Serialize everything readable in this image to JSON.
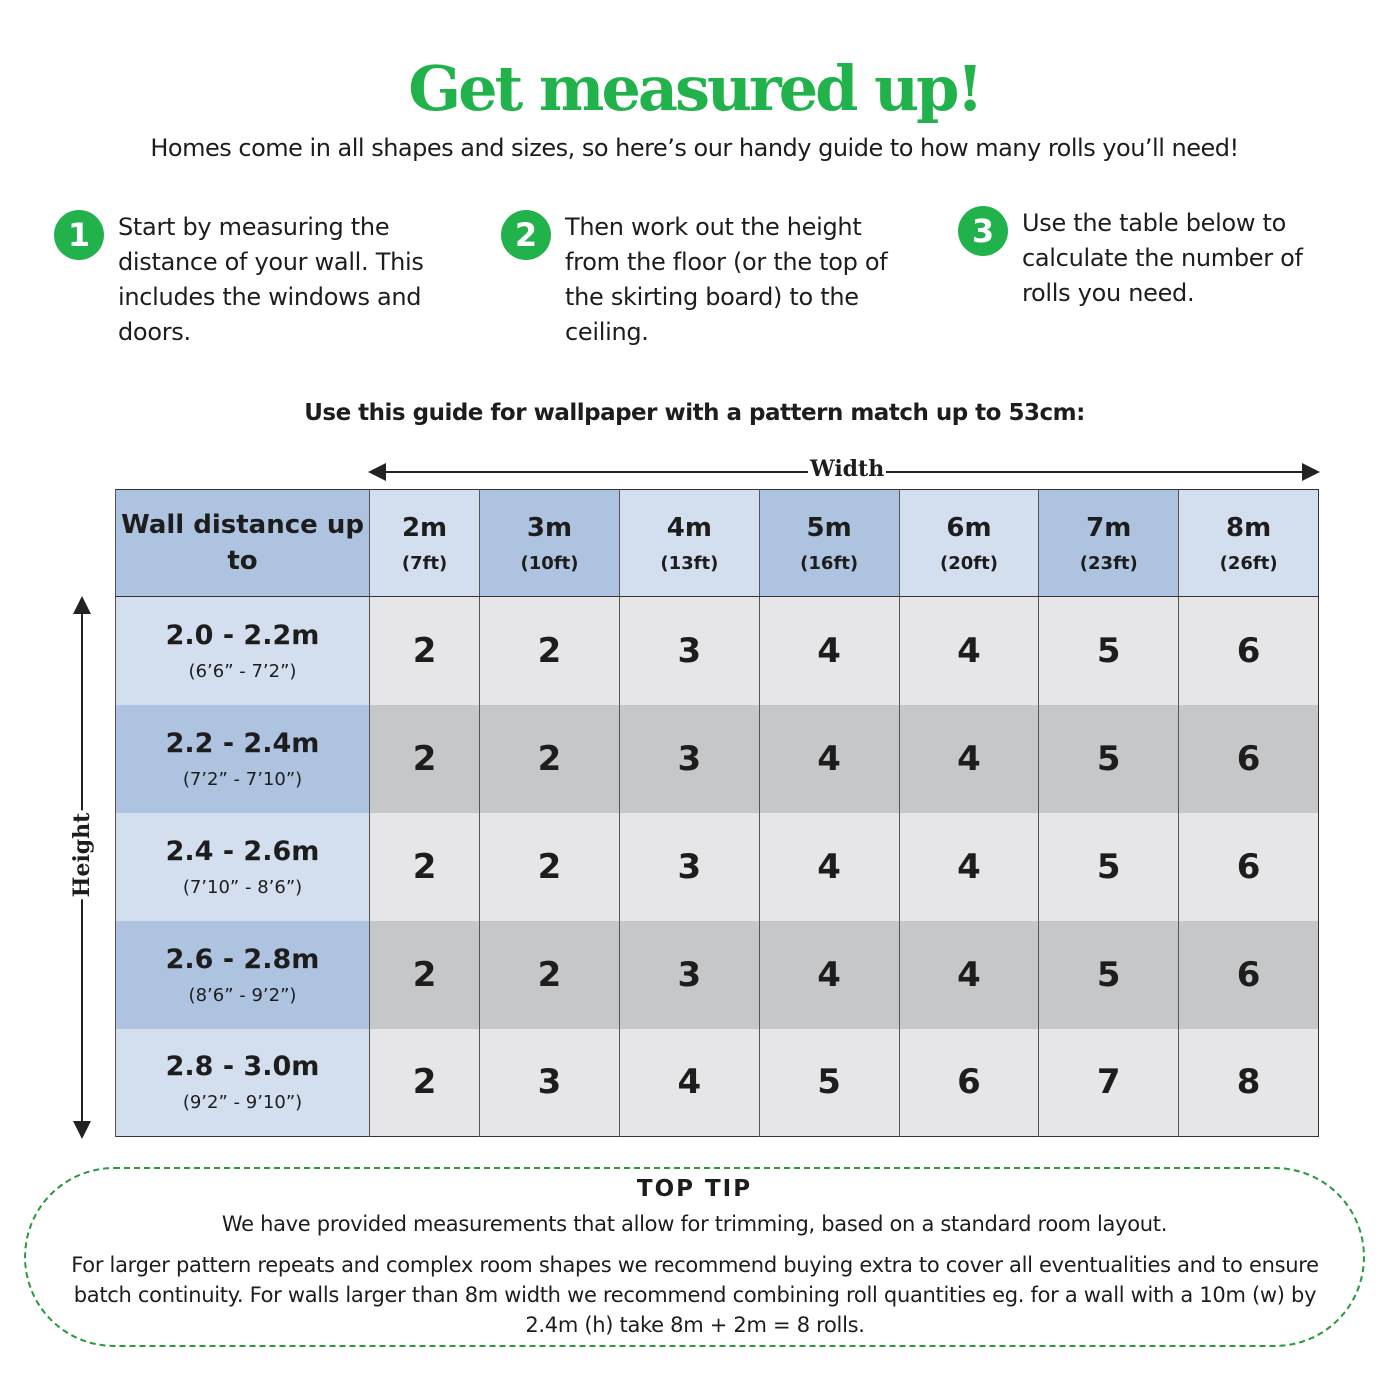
{
  "title": "Get measured up!",
  "subtitle": "Homes come in all shapes and sizes, so here’s our handy guide to how many rolls you’ll need!",
  "steps": [
    {
      "num": "1",
      "text": "Start by measuring the distance of your wall. This includes the windows and doors."
    },
    {
      "num": "2",
      "text": "Then work out the height from the floor (or the top of the skirting board) to the ceiling."
    },
    {
      "num": "3",
      "text": "Use the table below to calculate the number of rolls you need."
    }
  ],
  "guide_heading": "Use this guide for wallpaper with a pattern match up to 53cm:",
  "width_label": "Width",
  "height_label": "Height",
  "accent_color": "#22b24c",
  "table": {
    "corner": "Wall distance up to",
    "columns": [
      {
        "m": "2m",
        "ft": "(7ft)"
      },
      {
        "m": "3m",
        "ft": "(10ft)"
      },
      {
        "m": "4m",
        "ft": "(13ft)"
      },
      {
        "m": "5m",
        "ft": "(16ft)"
      },
      {
        "m": "6m",
        "ft": "(20ft)"
      },
      {
        "m": "7m",
        "ft": "(23ft)"
      },
      {
        "m": "8m",
        "ft": "(26ft)"
      }
    ],
    "rows": [
      {
        "m": "2.0 - 2.2m",
        "ft": "(6’6” - 7’2”)",
        "values": [
          "2",
          "2",
          "3",
          "4",
          "4",
          "5",
          "6"
        ]
      },
      {
        "m": "2.2 - 2.4m",
        "ft": "(7’2” - 7’10”)",
        "values": [
          "2",
          "2",
          "3",
          "4",
          "4",
          "5",
          "6"
        ]
      },
      {
        "m": "2.4 - 2.6m",
        "ft": "(7’10” - 8’6”)",
        "values": [
          "2",
          "2",
          "3",
          "4",
          "4",
          "5",
          "6"
        ]
      },
      {
        "m": "2.6 - 2.8m",
        "ft": "(8’6” - 9’2”)",
        "values": [
          "2",
          "2",
          "3",
          "4",
          "4",
          "5",
          "6"
        ]
      },
      {
        "m": "2.8 - 3.0m",
        "ft": "(9’2” - 9’10”)",
        "values": [
          "2",
          "3",
          "4",
          "5",
          "6",
          "7",
          "8"
        ]
      }
    ]
  },
  "top_tip": {
    "title": "TOP TIP",
    "line1": "We have provided measurements that allow for trimming, based on a standard room layout.",
    "line2": "For larger pattern repeats and complex room shapes we recommend buying extra to cover all eventualities and to ensure batch continuity. For walls larger than 8m width we recommend combining roll quantities eg. for a wall with a 10m (w) by 2.4m (h) take 8m + 2m = 8 rolls."
  }
}
